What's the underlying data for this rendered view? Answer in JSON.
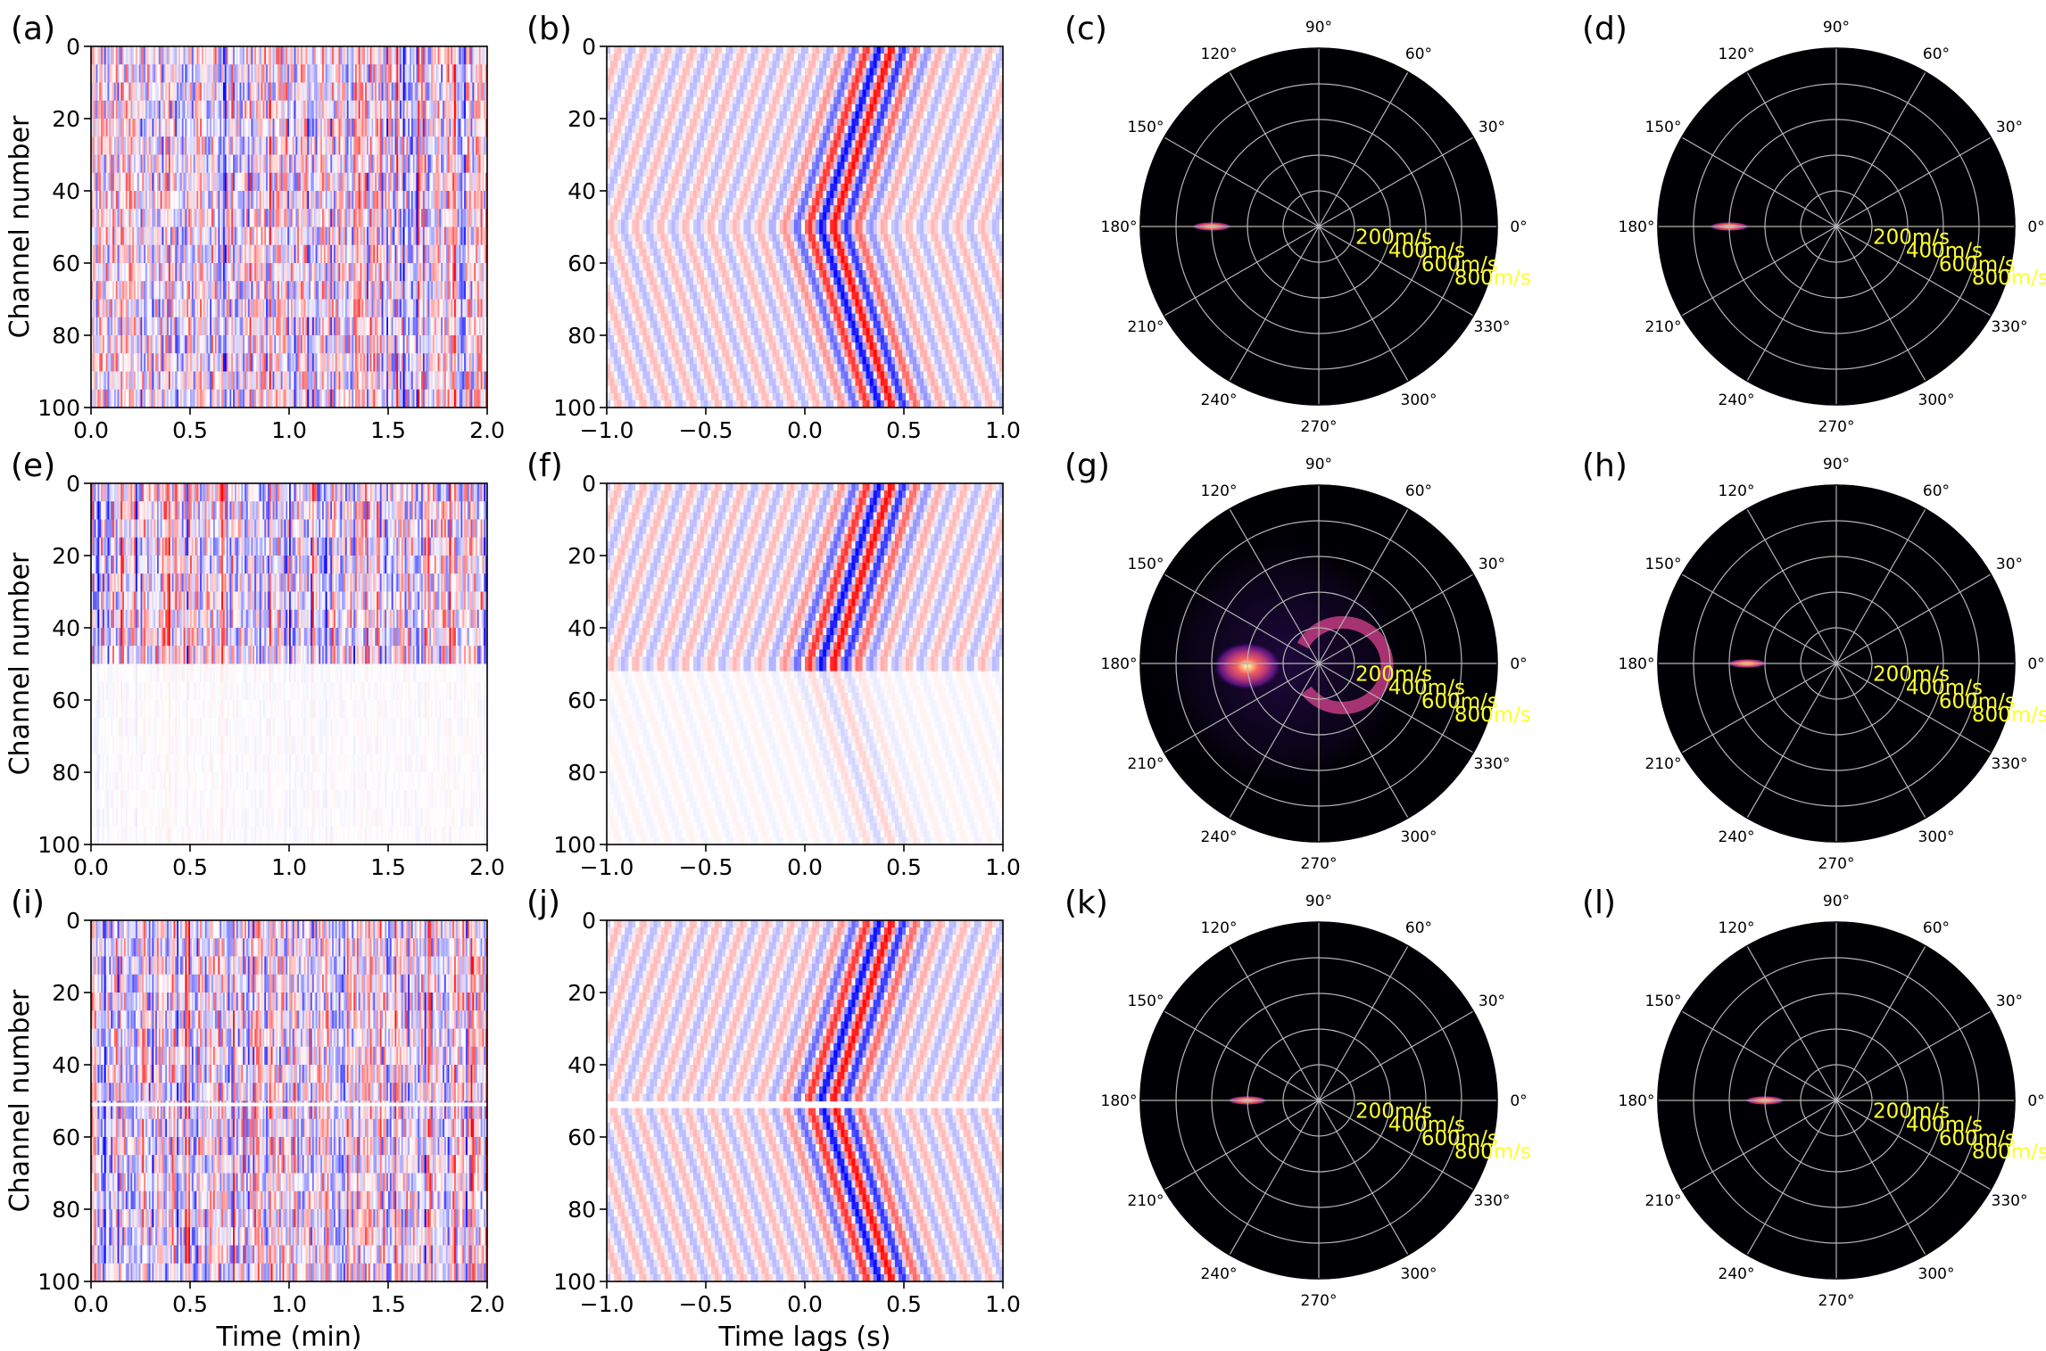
{
  "figure": {
    "panel_letters": [
      "(a)",
      "(b)",
      "(c)",
      "(d)",
      "(e)",
      "(f)",
      "(g)",
      "(h)",
      "(i)",
      "(j)",
      "(k)",
      "(l)"
    ],
    "ylabel": "Channel number",
    "xlabel_time": "Time (min)",
    "xlabel_lag": "Time lags (s)"
  },
  "chart_data": [
    {
      "panel": "(a)",
      "type": "heatmap",
      "content": "raw noise records, all channels active",
      "xlabel": "",
      "ylabel": "Channel number",
      "xlim": [
        0,
        2.0
      ],
      "ylim": [
        100,
        0
      ],
      "xticks": [
        "0.0",
        "0.5",
        "1.0",
        "1.5",
        "2.0"
      ],
      "yticks": [
        "0",
        "20",
        "40",
        "60",
        "80",
        "100"
      ],
      "colormap": "seismic"
    },
    {
      "panel": "(b)",
      "type": "heatmap",
      "content": "cross-correlation gather, V-shaped moveout with apex near channel 50",
      "xlabel": "",
      "ylabel": "",
      "xlim": [
        -1.0,
        1.0
      ],
      "ylim": [
        100,
        0
      ],
      "xticks": [
        "−1.0",
        "−0.5",
        "0.0",
        "0.5",
        "1.0"
      ],
      "yticks": [
        "0",
        "20",
        "40",
        "60",
        "80",
        "100"
      ],
      "colormap": "seismic"
    },
    {
      "panel": "(c)",
      "type": "heatmap",
      "projection": "polar",
      "angle_ticks": [
        "0°",
        "30°",
        "60°",
        "90°",
        "120°",
        "150°",
        "180°",
        "210°",
        "240°",
        "270°",
        "300°",
        "330°"
      ],
      "radial_labels": [
        "200m/s",
        "400m/s",
        "600m/s",
        "800m/s"
      ],
      "peak": {
        "azimuth_deg": 180,
        "velocity_mps": 600
      },
      "colormap": "magma"
    },
    {
      "panel": "(d)",
      "type": "heatmap",
      "projection": "polar",
      "angle_ticks": [
        "0°",
        "30°",
        "60°",
        "90°",
        "120°",
        "150°",
        "180°",
        "210°",
        "240°",
        "270°",
        "300°",
        "330°"
      ],
      "radial_labels": [
        "200m/s",
        "400m/s",
        "600m/s",
        "800m/s"
      ],
      "peak": {
        "azimuth_deg": 180,
        "velocity_mps": 600
      },
      "colormap": "magma"
    },
    {
      "panel": "(e)",
      "type": "heatmap",
      "content": "noise records, channels 50-100 strongly attenuated",
      "xlabel": "",
      "ylabel": "Channel number",
      "xlim": [
        0,
        2.0
      ],
      "ylim": [
        100,
        0
      ],
      "xticks": [
        "0.0",
        "0.5",
        "1.0",
        "1.5",
        "2.0"
      ],
      "yticks": [
        "0",
        "20",
        "40",
        "60",
        "80",
        "100"
      ],
      "colormap": "seismic"
    },
    {
      "panel": "(f)",
      "type": "heatmap",
      "content": "cross-correlation gather with weak lower half",
      "xlabel": "",
      "ylabel": "",
      "xlim": [
        -1.0,
        1.0
      ],
      "ylim": [
        100,
        0
      ],
      "xticks": [
        "−1.0",
        "−0.5",
        "0.0",
        "0.5",
        "1.0"
      ],
      "yticks": [
        "0",
        "20",
        "40",
        "60",
        "80",
        "100"
      ],
      "colormap": "seismic"
    },
    {
      "panel": "(g)",
      "type": "heatmap",
      "projection": "polar",
      "angle_ticks": [
        "0°",
        "30°",
        "60°",
        "90°",
        "120°",
        "150°",
        "180°",
        "210°",
        "240°",
        "270°",
        "300°",
        "330°"
      ],
      "radial_labels": [
        "200m/s",
        "400m/s",
        "600m/s",
        "800m/s"
      ],
      "peak": {
        "azimuth_deg": 180,
        "velocity_mps": 400
      },
      "colormap": "magma"
    },
    {
      "panel": "(h)",
      "type": "heatmap",
      "projection": "polar",
      "angle_ticks": [
        "0°",
        "30°",
        "60°",
        "90°",
        "120°",
        "150°",
        "180°",
        "210°",
        "240°",
        "270°",
        "300°",
        "330°"
      ],
      "radial_labels": [
        "200m/s",
        "400m/s",
        "600m/s",
        "800m/s"
      ],
      "peak": {
        "azimuth_deg": 180,
        "velocity_mps": 500
      },
      "colormap": "magma"
    },
    {
      "panel": "(i)",
      "type": "heatmap",
      "content": "noise records with a dead channel near 50",
      "xlabel": "Time (min)",
      "ylabel": "Channel number",
      "xlim": [
        0,
        2.0
      ],
      "ylim": [
        100,
        0
      ],
      "xticks": [
        "0.0",
        "0.5",
        "1.0",
        "1.5",
        "2.0"
      ],
      "yticks": [
        "0",
        "20",
        "40",
        "60",
        "80",
        "100"
      ],
      "colormap": "seismic"
    },
    {
      "panel": "(j)",
      "type": "heatmap",
      "content": "cross-correlation gather with a gap at channel 50",
      "xlabel": "Time lags (s)",
      "ylabel": "",
      "xlim": [
        -1.0,
        1.0
      ],
      "ylim": [
        100,
        0
      ],
      "xticks": [
        "−1.0",
        "−0.5",
        "0.0",
        "0.5",
        "1.0"
      ],
      "yticks": [
        "0",
        "20",
        "40",
        "60",
        "80",
        "100"
      ],
      "colormap": "seismic"
    },
    {
      "panel": "(k)",
      "type": "heatmap",
      "projection": "polar",
      "angle_ticks": [
        "0°",
        "30°",
        "60°",
        "90°",
        "120°",
        "150°",
        "180°",
        "210°",
        "240°",
        "270°",
        "300°",
        "330°"
      ],
      "radial_labels": [
        "200m/s",
        "400m/s",
        "600m/s",
        "800m/s"
      ],
      "peak": {
        "azimuth_deg": 180,
        "velocity_mps": 400
      },
      "colormap": "magma"
    },
    {
      "panel": "(l)",
      "type": "heatmap",
      "projection": "polar",
      "angle_ticks": [
        "0°",
        "30°",
        "60°",
        "90°",
        "120°",
        "150°",
        "180°",
        "210°",
        "240°",
        "270°",
        "300°",
        "330°"
      ],
      "radial_labels": [
        "200m/s",
        "400m/s",
        "600m/s",
        "800m/s"
      ],
      "peak": {
        "azimuth_deg": 180,
        "velocity_mps": 400
      },
      "colormap": "magma"
    }
  ],
  "colors": {
    "seismic_red": "#d20000",
    "seismic_blue": "#0000cc",
    "polar_background": "#000004",
    "polar_grid": "#b4b4b4",
    "radial_label": "#ffff2e"
  }
}
